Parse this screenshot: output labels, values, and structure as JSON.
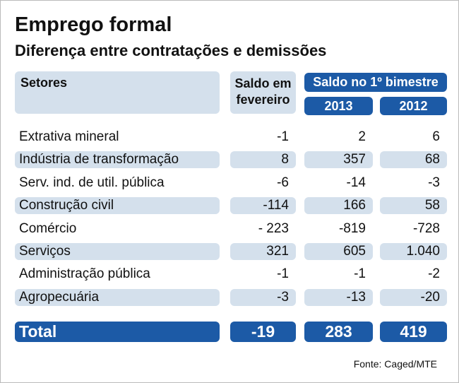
{
  "header": {
    "title": "Emprego formal",
    "subtitle": "Diferença entre contratações e demissões"
  },
  "table": {
    "columns": {
      "sector": "Setores",
      "february": "Saldo em fevereiro",
      "bimester": "Saldo no 1º bimestre",
      "year_a": "2013",
      "year_b": "2012"
    },
    "rows": [
      [
        "Extrativa mineral",
        "-1",
        "2",
        "6"
      ],
      [
        "Indústria de transformação",
        "8",
        "357",
        "68"
      ],
      [
        "Serv. ind. de util. pública",
        "-6",
        "-14",
        "-3"
      ],
      [
        "Construção civil",
        "-114",
        "166",
        "58"
      ],
      [
        "Comércio",
        "- 223",
        "-819",
        "-728"
      ],
      [
        "Serviços",
        "321",
        "605",
        "1.040"
      ],
      [
        "Administração pública",
        "-1",
        "-1",
        "-2"
      ],
      [
        "Agropecuária",
        "-3",
        "-13",
        "-20"
      ]
    ],
    "total": [
      "Total",
      "-19",
      "283",
      "419"
    ]
  },
  "source": "Fonte: Caged/MTE"
}
